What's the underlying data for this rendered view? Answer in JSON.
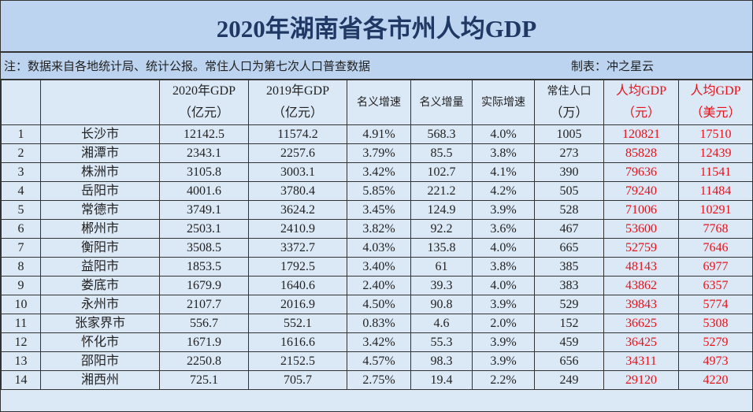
{
  "title": "2020年湖南省各市州人均GDP",
  "note": "注：数据来自各地统计局、统计公报。常住人口为第七次人口普查数据",
  "author": "制表：冲之星云",
  "headers": [
    {
      "l1": "",
      "l2": ""
    },
    {
      "l1": "",
      "l2": ""
    },
    {
      "l1": "2020年GDP",
      "l2": "（亿元）"
    },
    {
      "l1": "2019年GDP",
      "l2": "（亿元）"
    },
    {
      "l1": "名义增速",
      "l2": ""
    },
    {
      "l1": "名义增量",
      "l2": ""
    },
    {
      "l1": "实际增速",
      "l2": ""
    },
    {
      "l1": "常住人口",
      "l2": "（万）"
    },
    {
      "l1": "人均GDP",
      "l2": "（元）"
    },
    {
      "l1": "人均GDP",
      "l2": "（美元）"
    }
  ],
  "highlight_color": "#e8111a",
  "rows": [
    [
      "1",
      "长沙市",
      "12142.5",
      "11574.2",
      "4.91%",
      "568.3",
      "4.0%",
      "1005",
      "120821",
      "17510"
    ],
    [
      "2",
      "湘潭市",
      "2343.1",
      "2257.6",
      "3.79%",
      "85.5",
      "3.8%",
      "273",
      "85828",
      "12439"
    ],
    [
      "3",
      "株洲市",
      "3105.8",
      "3003.1",
      "3.42%",
      "102.7",
      "4.1%",
      "390",
      "79636",
      "11541"
    ],
    [
      "4",
      "岳阳市",
      "4001.6",
      "3780.4",
      "5.85%",
      "221.2",
      "4.2%",
      "505",
      "79240",
      "11484"
    ],
    [
      "5",
      "常德市",
      "3749.1",
      "3624.2",
      "3.45%",
      "124.9",
      "3.9%",
      "528",
      "71006",
      "10291"
    ],
    [
      "6",
      "郴州市",
      "2503.1",
      "2410.9",
      "3.82%",
      "92.2",
      "3.6%",
      "467",
      "53600",
      "7768"
    ],
    [
      "7",
      "衡阳市",
      "3508.5",
      "3372.7",
      "4.03%",
      "135.8",
      "4.0%",
      "665",
      "52759",
      "7646"
    ],
    [
      "8",
      "益阳市",
      "1853.5",
      "1792.5",
      "3.40%",
      "61",
      "3.8%",
      "385",
      "48143",
      "6977"
    ],
    [
      "9",
      "娄底市",
      "1679.9",
      "1640.6",
      "2.40%",
      "39.3",
      "4.0%",
      "383",
      "43862",
      "6357"
    ],
    [
      "10",
      "永州市",
      "2107.7",
      "2016.9",
      "4.50%",
      "90.8",
      "3.9%",
      "529",
      "39843",
      "5774"
    ],
    [
      "11",
      "张家界市",
      "556.7",
      "552.1",
      "0.83%",
      "4.6",
      "2.0%",
      "152",
      "36625",
      "5308"
    ],
    [
      "12",
      "怀化市",
      "1671.9",
      "1616.6",
      "3.42%",
      "55.3",
      "3.9%",
      "459",
      "36425",
      "5279"
    ],
    [
      "13",
      "邵阳市",
      "2250.8",
      "2152.5",
      "4.57%",
      "98.3",
      "3.9%",
      "656",
      "34311",
      "4973"
    ],
    [
      "14",
      "湘西州",
      "725.1",
      "705.7",
      "2.75%",
      "19.4",
      "2.2%",
      "249",
      "29120",
      "4220"
    ]
  ]
}
